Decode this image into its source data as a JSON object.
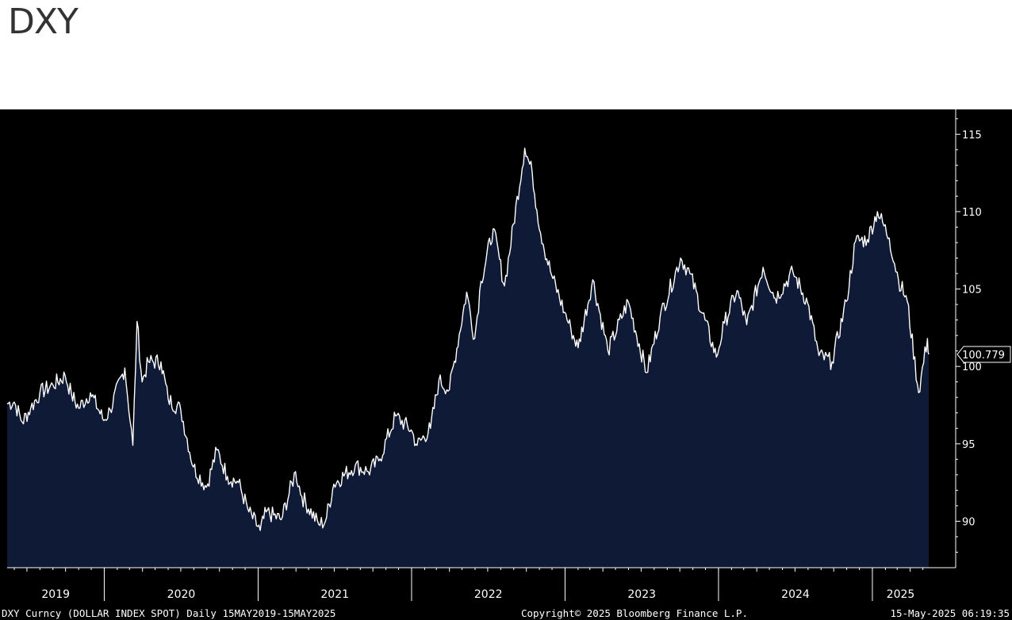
{
  "title": "DXY",
  "footer": {
    "left": "DXY Curncy (DOLLAR INDEX SPOT)  Daily 15MAY2019-15MAY2025",
    "center": "Copyright© 2025 Bloomberg Finance L.P.",
    "right": "15-May-2025 06:19:35"
  },
  "colors": {
    "background": "#000000",
    "area_fill": "#0e1a36",
    "line": "#ffffff",
    "axis": "#ffffff"
  },
  "chart_data": {
    "type": "area",
    "title": "DXY",
    "xlabel": "",
    "ylabel": "",
    "ylim": [
      87,
      116.5
    ],
    "xlim": [
      "2019-05-15",
      "2025-05-15"
    ],
    "yticks": [
      90,
      95,
      100,
      105,
      110,
      115
    ],
    "xticks": [
      "2019",
      "2020",
      "2021",
      "2022",
      "2023",
      "2024",
      "2025"
    ],
    "grid": false,
    "last_value": "100.779",
    "series": [
      {
        "points": [
          [
            "2019-05-15",
            97.6
          ],
          [
            "2019-06-01",
            97.7
          ],
          [
            "2019-06-20",
            96.4
          ],
          [
            "2019-07-10",
            97.3
          ],
          [
            "2019-08-01",
            98.3
          ],
          [
            "2019-09-01",
            98.8
          ],
          [
            "2019-09-30",
            99.4
          ],
          [
            "2019-10-15",
            98.2
          ],
          [
            "2019-11-01",
            97.3
          ],
          [
            "2019-11-29",
            98.3
          ],
          [
            "2019-12-31",
            96.5
          ],
          [
            "2020-01-15",
            97.2
          ],
          [
            "2020-02-19",
            99.9
          ],
          [
            "2020-03-09",
            94.9
          ],
          [
            "2020-03-19",
            102.9
          ],
          [
            "2020-03-31",
            99.0
          ],
          [
            "2020-04-15",
            100.3
          ],
          [
            "2020-05-15",
            100.3
          ],
          [
            "2020-06-01",
            97.9
          ],
          [
            "2020-07-01",
            97.2
          ],
          [
            "2020-07-31",
            93.5
          ],
          [
            "2020-08-31",
            92.2
          ],
          [
            "2020-09-25",
            94.6
          ],
          [
            "2020-10-20",
            92.9
          ],
          [
            "2020-11-15",
            92.5
          ],
          [
            "2020-12-10",
            90.6
          ],
          [
            "2021-01-06",
            89.4
          ],
          [
            "2021-01-20",
            90.6
          ],
          [
            "2021-02-25",
            90.1
          ],
          [
            "2021-03-31",
            93.2
          ],
          [
            "2021-04-15",
            91.6
          ],
          [
            "2021-05-25",
            89.8
          ],
          [
            "2021-06-10",
            90.0
          ],
          [
            "2021-06-30",
            92.4
          ],
          [
            "2021-08-20",
            93.6
          ],
          [
            "2021-09-20",
            93.2
          ],
          [
            "2021-10-15",
            93.9
          ],
          [
            "2021-11-24",
            96.8
          ],
          [
            "2021-12-31",
            95.9
          ],
          [
            "2022-01-14",
            94.9
          ],
          [
            "2022-02-15",
            96.0
          ],
          [
            "2022-03-07",
            99.1
          ],
          [
            "2022-04-01",
            98.5
          ],
          [
            "2022-05-12",
            104.8
          ],
          [
            "2022-05-31",
            101.8
          ],
          [
            "2022-06-15",
            105.5
          ],
          [
            "2022-07-14",
            108.9
          ],
          [
            "2022-08-10",
            105.2
          ],
          [
            "2022-09-27",
            114.1
          ],
          [
            "2022-10-15",
            112.5
          ],
          [
            "2022-10-26",
            110.1
          ],
          [
            "2022-11-10",
            107.9
          ],
          [
            "2022-11-30",
            105.9
          ],
          [
            "2022-12-31",
            103.5
          ],
          [
            "2023-01-15",
            102.4
          ],
          [
            "2023-02-01",
            101.2
          ],
          [
            "2023-03-08",
            105.6
          ],
          [
            "2023-04-13",
            101.0
          ],
          [
            "2023-05-31",
            104.2
          ],
          [
            "2023-07-14",
            99.6
          ],
          [
            "2023-08-15",
            103.2
          ],
          [
            "2023-10-03",
            107.0
          ],
          [
            "2023-10-25",
            106.0
          ],
          [
            "2023-12-27",
            100.6
          ],
          [
            "2024-01-15",
            102.8
          ],
          [
            "2024-02-14",
            104.9
          ],
          [
            "2024-03-08",
            102.7
          ],
          [
            "2024-04-16",
            106.4
          ],
          [
            "2024-05-15",
            104.4
          ],
          [
            "2024-06-26",
            106.1
          ],
          [
            "2024-07-31",
            104.1
          ],
          [
            "2024-08-27",
            100.7
          ],
          [
            "2024-09-27",
            100.3
          ],
          [
            "2024-10-31",
            104.2
          ],
          [
            "2024-11-22",
            108.1
          ],
          [
            "2024-12-20",
            108.2
          ],
          [
            "2025-01-13",
            110.0
          ],
          [
            "2025-02-10",
            108.3
          ],
          [
            "2025-03-04",
            105.6
          ],
          [
            "2025-03-25",
            104.2
          ],
          [
            "2025-04-21",
            98.3
          ],
          [
            "2025-05-12",
            101.8
          ],
          [
            "2025-05-15",
            100.779
          ]
        ]
      }
    ]
  }
}
